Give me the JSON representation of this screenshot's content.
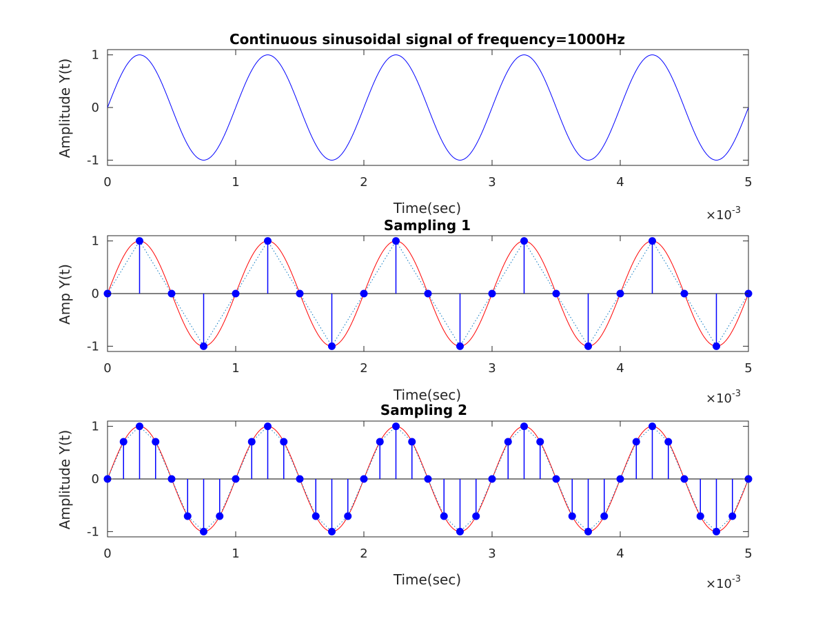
{
  "chart_data": [
    {
      "type": "line",
      "title": "Continuous sinusoidal signal of frequency=1000Hz",
      "xlabel": "Time(sec)",
      "ylabel": "Amplitude Y(t)",
      "x_exponent": "10",
      "x_exponent_power": "-3",
      "xlim": [
        0,
        0.005
      ],
      "ylim": [
        -1.1,
        1.1
      ],
      "x_ticks": [
        0,
        0.001,
        0.002,
        0.003,
        0.004,
        0.005
      ],
      "x_tick_labels": [
        "0",
        "1",
        "2",
        "3",
        "4",
        "5"
      ],
      "y_ticks": [
        -1,
        0,
        1
      ],
      "y_tick_labels": [
        "-1",
        "0",
        "1"
      ],
      "signal": {
        "frequency_hz": 1000,
        "amplitude": 1,
        "color": "#0000ff"
      }
    },
    {
      "type": "stem",
      "title": "Sampling 1",
      "xlabel": "Time(sec)",
      "ylabel": "Amp Y(t)",
      "x_exponent": "10",
      "x_exponent_power": "-3",
      "xlim": [
        0,
        0.005
      ],
      "ylim": [
        -1.1,
        1.1
      ],
      "x_ticks": [
        0,
        0.001,
        0.002,
        0.003,
        0.004,
        0.005
      ],
      "x_tick_labels": [
        "0",
        "1",
        "2",
        "3",
        "4",
        "5"
      ],
      "y_ticks": [
        -1,
        0,
        1
      ],
      "y_tick_labels": [
        "-1",
        "0",
        "1"
      ],
      "signal": {
        "frequency_hz": 1000,
        "amplitude": 1,
        "color": "#ff0000"
      },
      "sample_interval": 0.00025,
      "stem_color": "#0000ff",
      "connect_color": "#0072bd",
      "samples_x": [
        0,
        0.00025,
        0.0005,
        0.00075,
        0.001,
        0.00125,
        0.0015,
        0.00175,
        0.002,
        0.00225,
        0.0025,
        0.00275,
        0.003,
        0.00325,
        0.0035,
        0.00375,
        0.004,
        0.00425,
        0.0045,
        0.00475,
        0.005
      ],
      "samples_y": [
        0,
        1,
        0,
        -1,
        0,
        1,
        0,
        -1,
        0,
        1,
        0,
        -1,
        0,
        1,
        0,
        -1,
        0,
        1,
        0,
        -1,
        0
      ]
    },
    {
      "type": "stem",
      "title": "Sampling 2",
      "xlabel": "Time(sec)",
      "ylabel": "Amplitude Y(t)",
      "x_exponent": "10",
      "x_exponent_power": "-3",
      "xlim": [
        0,
        0.005
      ],
      "ylim": [
        -1.1,
        1.1
      ],
      "x_ticks": [
        0,
        0.001,
        0.002,
        0.003,
        0.004,
        0.005
      ],
      "x_tick_labels": [
        "0",
        "1",
        "2",
        "3",
        "4",
        "5"
      ],
      "y_ticks": [
        -1,
        0,
        1
      ],
      "y_tick_labels": [
        "-1",
        "0",
        "1"
      ],
      "signal": {
        "frequency_hz": 1000,
        "amplitude": 1,
        "color": "#ff0000"
      },
      "sample_interval": 0.000125,
      "stem_color": "#0000ff",
      "connect_color": "#0072bd",
      "samples_x": [
        0,
        0.000125,
        0.00025,
        0.000375,
        0.0005,
        0.000625,
        0.00075,
        0.000875,
        0.001,
        0.001125,
        0.00125,
        0.001375,
        0.0015,
        0.001625,
        0.00175,
        0.001875,
        0.002,
        0.002125,
        0.00225,
        0.002375,
        0.0025,
        0.002625,
        0.00275,
        0.002875,
        0.003,
        0.003125,
        0.00325,
        0.003375,
        0.0035,
        0.003625,
        0.00375,
        0.003875,
        0.004,
        0.004125,
        0.00425,
        0.004375,
        0.0045,
        0.004625,
        0.00475,
        0.004875,
        0.005
      ],
      "samples_y": [
        0,
        0.707,
        1,
        0.707,
        0,
        -0.707,
        -1,
        -0.707,
        0,
        0.707,
        1,
        0.707,
        0,
        -0.707,
        -1,
        -0.707,
        0,
        0.707,
        1,
        0.707,
        0,
        -0.707,
        -1,
        -0.707,
        0,
        0.707,
        1,
        0.707,
        0,
        -0.707,
        -1,
        -0.707,
        0,
        0.707,
        1,
        0.707,
        0,
        -0.707,
        -1,
        -0.707,
        0
      ]
    }
  ]
}
